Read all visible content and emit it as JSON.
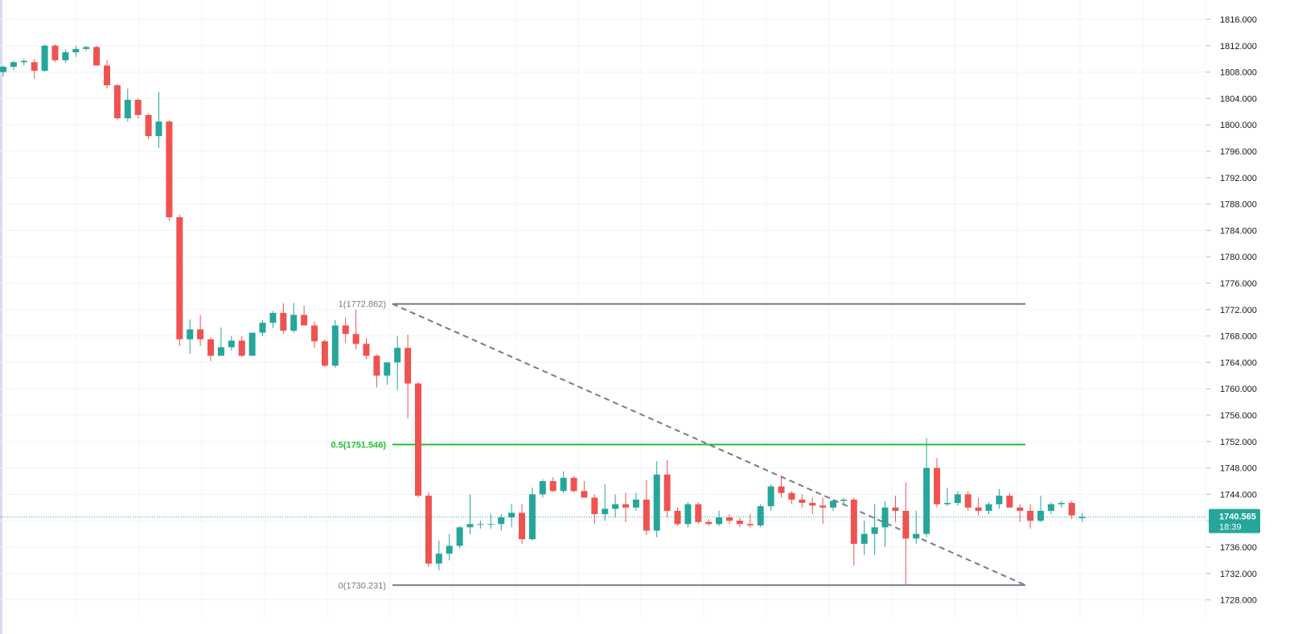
{
  "colors": {
    "up": "#26a69a",
    "down": "#ef5350",
    "grid": "#f0f3fa",
    "axis_text": "#131722",
    "fib_line": "#787b86",
    "fib_mid": "#22c22e",
    "price_line": "#26a69a",
    "price_badge": "#26a69a"
  },
  "price_badge": {
    "price": "1740.565",
    "countdown": "18:39"
  },
  "chart_data": {
    "type": "candlestick",
    "title": "",
    "xlabel": "",
    "ylabel": "",
    "ylim": [
      1726.5,
      1818.0
    ],
    "y_ticks": [
      "1728.000",
      "1732.000",
      "1736.000",
      "1740.000",
      "1744.000",
      "1748.000",
      "1752.000",
      "1756.000",
      "1760.000",
      "1764.000",
      "1768.000",
      "1772.000",
      "1776.000",
      "1780.000",
      "1784.000",
      "1788.000",
      "1792.000",
      "1796.000",
      "1800.000",
      "1804.000",
      "1808.000",
      "1812.000",
      "1816.000"
    ],
    "grid": true,
    "last_price": 1740.565,
    "candles": [
      [
        1808.0,
        1809.0,
        1807.3,
        1808.8
      ],
      [
        1808.8,
        1809.7,
        1808.3,
        1809.5
      ],
      [
        1809.5,
        1810.0,
        1809.0,
        1809.7
      ],
      [
        1809.5,
        1810.0,
        1807.0,
        1808.2
      ],
      [
        1808.2,
        1812.2,
        1808.0,
        1812.0
      ],
      [
        1812.0,
        1812.2,
        1809.5,
        1809.8
      ],
      [
        1809.8,
        1811.4,
        1809.4,
        1811.0
      ],
      [
        1811.0,
        1812.0,
        1810.3,
        1811.5
      ],
      [
        1811.5,
        1812.0,
        1811.2,
        1811.8
      ],
      [
        1811.8,
        1812.0,
        1809.0,
        1809.0
      ],
      [
        1809.0,
        1809.8,
        1805.5,
        1806.0
      ],
      [
        1806.0,
        1806.2,
        1800.8,
        1801.0
      ],
      [
        1801.0,
        1805.5,
        1800.5,
        1803.8
      ],
      [
        1803.8,
        1804.0,
        1801.0,
        1801.5
      ],
      [
        1801.5,
        1801.7,
        1797.8,
        1798.3
      ],
      [
        1798.3,
        1805.0,
        1796.5,
        1800.5
      ],
      [
        1800.5,
        1800.7,
        1785.5,
        1786.0
      ],
      [
        1786.0,
        1786.4,
        1766.5,
        1767.5
      ],
      [
        1767.5,
        1770.5,
        1765.3,
        1769.0
      ],
      [
        1769.0,
        1771.2,
        1766.5,
        1767.5
      ],
      [
        1767.5,
        1767.8,
        1764.2,
        1765.0
      ],
      [
        1765.0,
        1769.3,
        1765.0,
        1766.3
      ],
      [
        1766.3,
        1768.0,
        1765.8,
        1767.3
      ],
      [
        1767.3,
        1768.0,
        1764.8,
        1765.0
      ],
      [
        1765.0,
        1768.5,
        1765.0,
        1768.5
      ],
      [
        1768.5,
        1770.4,
        1768.0,
        1770.0
      ],
      [
        1770.0,
        1771.8,
        1769.2,
        1771.5
      ],
      [
        1771.5,
        1773.0,
        1768.3,
        1768.8
      ],
      [
        1768.8,
        1773.0,
        1768.5,
        1771.2
      ],
      [
        1771.2,
        1772.6,
        1769.6,
        1769.6
      ],
      [
        1769.6,
        1770.2,
        1766.2,
        1767.2
      ],
      [
        1767.2,
        1767.5,
        1763.3,
        1763.5
      ],
      [
        1763.5,
        1770.4,
        1763.2,
        1769.6
      ],
      [
        1769.6,
        1770.8,
        1767.0,
        1768.3
      ],
      [
        1768.3,
        1772.0,
        1766.0,
        1766.8
      ],
      [
        1766.8,
        1767.7,
        1764.5,
        1765.0
      ],
      [
        1765.0,
        1765.2,
        1760.2,
        1762.0
      ],
      [
        1762.0,
        1764.0,
        1760.6,
        1764.0
      ],
      [
        1764.0,
        1768.0,
        1759.8,
        1766.2
      ],
      [
        1766.2,
        1768.2,
        1755.5,
        1760.8
      ],
      [
        1760.8,
        1761.0,
        1743.5,
        1743.8
      ],
      [
        1743.8,
        1744.3,
        1733.0,
        1733.5
      ],
      [
        1733.5,
        1737.0,
        1732.5,
        1735.0
      ],
      [
        1735.0,
        1738.0,
        1734.0,
        1736.2
      ],
      [
        1736.2,
        1739.2,
        1735.8,
        1739.0
      ],
      [
        1739.0,
        1744.0,
        1738.0,
        1739.5
      ],
      [
        1739.5,
        1740.0,
        1738.8,
        1739.5
      ],
      [
        1739.5,
        1741.0,
        1738.8,
        1739.5
      ],
      [
        1739.5,
        1741.0,
        1738.5,
        1740.5
      ],
      [
        1740.5,
        1742.5,
        1739.0,
        1741.2
      ],
      [
        1741.2,
        1742.5,
        1736.5,
        1737.2
      ],
      [
        1737.2,
        1745.0,
        1737.0,
        1744.0
      ],
      [
        1744.0,
        1746.3,
        1743.5,
        1746.0
      ],
      [
        1746.0,
        1746.6,
        1744.3,
        1744.5
      ],
      [
        1744.5,
        1747.5,
        1744.2,
        1746.5
      ],
      [
        1746.5,
        1746.8,
        1744.3,
        1744.5
      ],
      [
        1744.5,
        1746.0,
        1743.5,
        1743.5
      ],
      [
        1743.5,
        1744.0,
        1739.5,
        1741.0
      ],
      [
        1741.0,
        1745.5,
        1740.0,
        1741.8
      ],
      [
        1741.8,
        1744.0,
        1740.5,
        1742.5
      ],
      [
        1742.5,
        1744.2,
        1739.8,
        1742.0
      ],
      [
        1742.0,
        1744.2,
        1741.5,
        1743.2
      ],
      [
        1743.2,
        1746.2,
        1737.8,
        1738.5
      ],
      [
        1738.5,
        1749.0,
        1737.5,
        1747.0
      ],
      [
        1747.0,
        1749.2,
        1740.5,
        1741.5
      ],
      [
        1741.5,
        1742.0,
        1739.2,
        1739.5
      ],
      [
        1739.5,
        1742.8,
        1739.0,
        1742.5
      ],
      [
        1742.5,
        1742.8,
        1739.5,
        1739.8
      ],
      [
        1739.8,
        1740.2,
        1739.2,
        1739.5
      ],
      [
        1739.5,
        1741.5,
        1739.2,
        1740.5
      ],
      [
        1740.5,
        1741.0,
        1739.5,
        1740.0
      ],
      [
        1740.0,
        1740.5,
        1739.0,
        1739.5
      ],
      [
        1739.5,
        1741.0,
        1739.0,
        1739.3
      ],
      [
        1739.3,
        1742.5,
        1739.0,
        1742.2
      ],
      [
        1742.2,
        1745.5,
        1741.5,
        1745.2
      ],
      [
        1745.2,
        1746.8,
        1743.5,
        1744.2
      ],
      [
        1744.2,
        1744.5,
        1742.5,
        1743.2
      ],
      [
        1743.2,
        1744.0,
        1742.0,
        1742.7
      ],
      [
        1742.7,
        1743.5,
        1741.0,
        1742.3
      ],
      [
        1742.3,
        1743.5,
        1739.5,
        1742.0
      ],
      [
        1742.0,
        1743.2,
        1741.5,
        1743.0
      ],
      [
        1743.0,
        1743.5,
        1742.5,
        1743.2
      ],
      [
        1743.2,
        1743.5,
        1733.2,
        1736.5
      ],
      [
        1736.5,
        1740.0,
        1734.8,
        1738.0
      ],
      [
        1738.0,
        1742.5,
        1734.8,
        1739.0
      ],
      [
        1739.0,
        1743.0,
        1736.0,
        1742.0
      ],
      [
        1742.0,
        1743.8,
        1739.8,
        1741.5
      ],
      [
        1741.5,
        1745.8,
        1730.2,
        1737.3
      ],
      [
        1737.3,
        1741.5,
        1736.5,
        1738.0
      ],
      [
        1738.0,
        1752.5,
        1737.5,
        1748.0
      ],
      [
        1748.0,
        1749.5,
        1742.0,
        1742.5
      ],
      [
        1742.5,
        1745.0,
        1742.2,
        1742.7
      ],
      [
        1742.7,
        1744.5,
        1742.3,
        1744.0
      ],
      [
        1744.0,
        1744.5,
        1741.5,
        1742.0
      ],
      [
        1742.0,
        1743.5,
        1740.8,
        1741.5
      ],
      [
        1741.5,
        1742.8,
        1741.0,
        1742.5
      ],
      [
        1742.5,
        1744.8,
        1741.8,
        1743.8
      ],
      [
        1743.8,
        1744.2,
        1742.0,
        1742.0
      ],
      [
        1742.0,
        1742.5,
        1739.8,
        1741.5
      ],
      [
        1741.5,
        1742.5,
        1738.8,
        1740.0
      ],
      [
        1740.0,
        1743.8,
        1739.8,
        1741.5
      ],
      [
        1741.5,
        1742.8,
        1741.0,
        1742.5
      ],
      [
        1742.5,
        1743.0,
        1742.0,
        1742.7
      ],
      [
        1742.7,
        1743.0,
        1740.2,
        1740.8
      ],
      [
        1740.4,
        1741.2,
        1739.8,
        1740.6
      ]
    ],
    "annotations": {
      "fib_levels": [
        {
          "label": "1(1772.862)",
          "value": 1772.862,
          "kind": "end"
        },
        {
          "label": "0.5(1751.546)",
          "value": 1751.546,
          "kind": "mid"
        },
        {
          "label": "0(1730.231)",
          "value": 1730.231,
          "kind": "end"
        }
      ],
      "trend_line": {
        "from_value": 1772.862,
        "to_value": 1730.231,
        "style": "dashed"
      }
    }
  }
}
